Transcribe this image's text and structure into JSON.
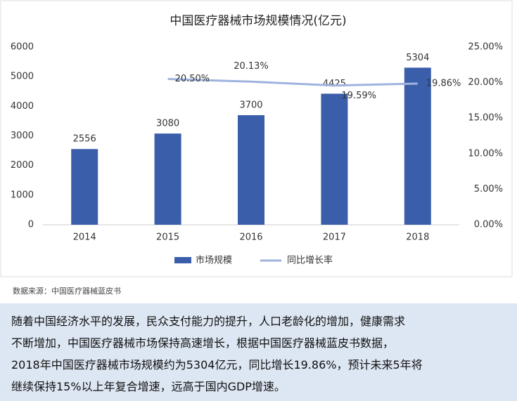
{
  "chart_data": {
    "type": "bar-line",
    "title": "中国医疗器械市场规模情况(亿元)",
    "categories": [
      "2014",
      "2015",
      "2016",
      "2017",
      "2018"
    ],
    "series": [
      {
        "name": "市场规模",
        "type": "bar",
        "color": "#3b5eab",
        "values": [
          2556,
          3080,
          3700,
          4425,
          5304
        ]
      },
      {
        "name": "同比增长率",
        "type": "line",
        "axis": "y2",
        "color": "#9fb3de",
        "values": [
          null,
          20.5,
          20.13,
          19.59,
          19.86
        ],
        "value_labels": [
          null,
          "20.50%",
          "20.13%",
          "19.59%",
          "19.86%"
        ]
      }
    ],
    "ylim": [
      0,
      6000
    ],
    "yticks": [
      0,
      1000,
      2000,
      3000,
      4000,
      5000,
      6000
    ],
    "y2lim": [
      0,
      25
    ],
    "y2ticks": [
      {
        "value": 0,
        "label": "0.00%"
      },
      {
        "value": 5,
        "label": "5.00%"
      },
      {
        "value": 10,
        "label": "10.00%"
      },
      {
        "value": 15,
        "label": "15.00%"
      },
      {
        "value": 20,
        "label": "20.00%"
      },
      {
        "value": 25,
        "label": "25.00%"
      }
    ],
    "legend": "bottom"
  },
  "source": "数据来源：中国医疗器械蓝皮书",
  "paragraph": [
    "随着中国经济水平的发展，民众支付能力的提升，人口老龄化的增加，健康需求",
    "不断增加，中国医疗器械市场保持高速增长，根据中国医疗器械蓝皮书数据，",
    "2018年中国医疗器械市场规模约为5304亿元，同比增长19.86%，预计未来5年将",
    "继续保持15%以上年复合增速，远高于国内GDP增速。"
  ]
}
